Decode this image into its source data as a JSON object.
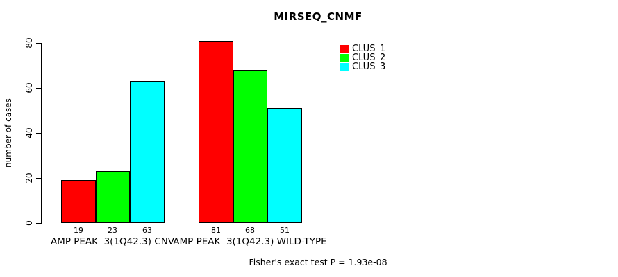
{
  "title": "MIRSEQ_CNMF",
  "footer": "Fisher's exact test P = 1.93e-08",
  "chart_data": {
    "type": "bar",
    "title": "MIRSEQ_CNMF",
    "xlabel": "",
    "ylabel": "number of cases",
    "ylim": [
      0,
      80
    ],
    "yticks": [
      0,
      20,
      40,
      60,
      80
    ],
    "grid": false,
    "legend_position": "top-right-inside",
    "categories": [
      "AMP PEAK  3(1Q42.3) CNV",
      "AMP PEAK  3(1Q42.3) WILD-TYPE"
    ],
    "series": [
      {
        "name": "CLUS_1",
        "color": "#ff0000",
        "values": [
          19,
          81
        ]
      },
      {
        "name": "CLUS_2",
        "color": "#00ff00",
        "values": [
          23,
          68
        ]
      },
      {
        "name": "CLUS_3",
        "color": "#00ffff",
        "values": [
          63,
          51
        ]
      }
    ],
    "bar_value_labels": [
      [
        19,
        23,
        63
      ],
      [
        81,
        68,
        51
      ]
    ],
    "annotation": "Fisher's exact test P = 1.93e-08"
  }
}
